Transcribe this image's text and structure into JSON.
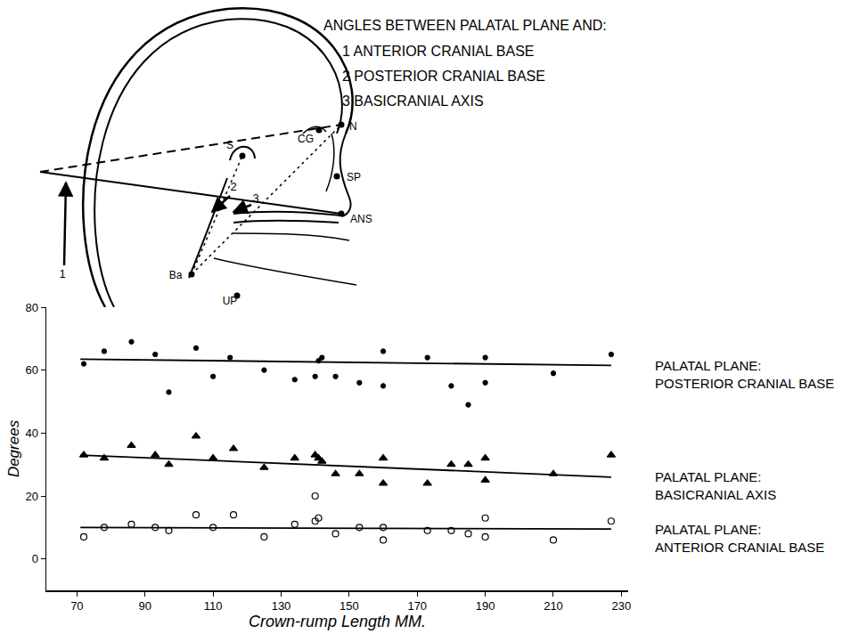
{
  "diagram": {
    "heading": "ANGLES BETWEEN PALATAL PLANE AND:",
    "items": [
      "1 ANTERIOR CRANIAL BASE",
      "2 POSTERIOR CRANIAL BASE",
      "3 BASICRANIAL AXIS"
    ],
    "landmarks": [
      "CG",
      "S",
      "N",
      "SP",
      "ANS",
      "Ba",
      "UP"
    ],
    "angle_labels": [
      "1",
      "2",
      "3"
    ]
  },
  "chart_data": {
    "type": "scatter",
    "xlabel": "Crown-rump Length MM.",
    "ylabel": "Degrees",
    "xlim": [
      61,
      232
    ],
    "xticks": [
      70,
      90,
      110,
      130,
      150,
      170,
      190,
      210,
      230
    ],
    "ylim": [
      -10,
      80
    ],
    "yticks": [
      0,
      20,
      40,
      60,
      80
    ],
    "grid": false,
    "series": [
      {
        "name": "PALATAL PLANE: POSTERIOR CRANIAL BASE",
        "color": "#000000",
        "marker": "circle",
        "x": [
          72,
          78,
          86,
          93,
          97,
          105,
          110,
          115,
          125,
          134,
          140,
          141,
          142,
          146,
          153,
          160,
          160,
          173,
          180,
          185,
          190,
          190,
          210,
          227
        ],
        "values": [
          62,
          66,
          69,
          65,
          53,
          67,
          58,
          64,
          60,
          57,
          58,
          63,
          64,
          58,
          56,
          55,
          66,
          64,
          55,
          49,
          56,
          64,
          59,
          65
        ],
        "fit": {
          "x": [
            71,
            227
          ],
          "values": [
            63.5,
            61.5
          ],
          "line_style": "solid"
        }
      },
      {
        "name": "PALATAL PLANE: BASICRANIAL AXIS",
        "color": "#000000",
        "marker": "triangle",
        "x": [
          72,
          78,
          86,
          93,
          97,
          105,
          110,
          116,
          125,
          134,
          140,
          141,
          142,
          146,
          153,
          160,
          160,
          173,
          180,
          185,
          190,
          190,
          210,
          227
        ],
        "values": [
          33,
          32,
          36,
          33,
          30,
          39,
          32,
          35,
          29,
          32,
          33,
          32,
          31,
          27,
          27,
          24,
          32,
          24,
          30,
          30,
          32,
          25,
          27,
          33
        ],
        "fit": {
          "x": [
            71,
            227
          ],
          "values": [
            33,
            26
          ],
          "line_style": "solid"
        }
      },
      {
        "name": "PALATAL PLANE: ANTERIOR CRANIAL BASE",
        "color": "#000000",
        "marker": "open circle",
        "x": [
          72,
          78,
          86,
          93,
          97,
          105,
          110,
          116,
          125,
          134,
          140,
          140,
          141,
          146,
          153,
          160,
          160,
          173,
          180,
          185,
          190,
          190,
          210,
          227
        ],
        "values": [
          7,
          10,
          11,
          10,
          9,
          14,
          10,
          14,
          7,
          11,
          12,
          20,
          13,
          8,
          10,
          6,
          10,
          9,
          9,
          8,
          13,
          7,
          6,
          12
        ],
        "fit": {
          "x": [
            71,
            227
          ],
          "values": [
            10,
            9.5
          ],
          "line_style": "solid"
        }
      }
    ]
  }
}
